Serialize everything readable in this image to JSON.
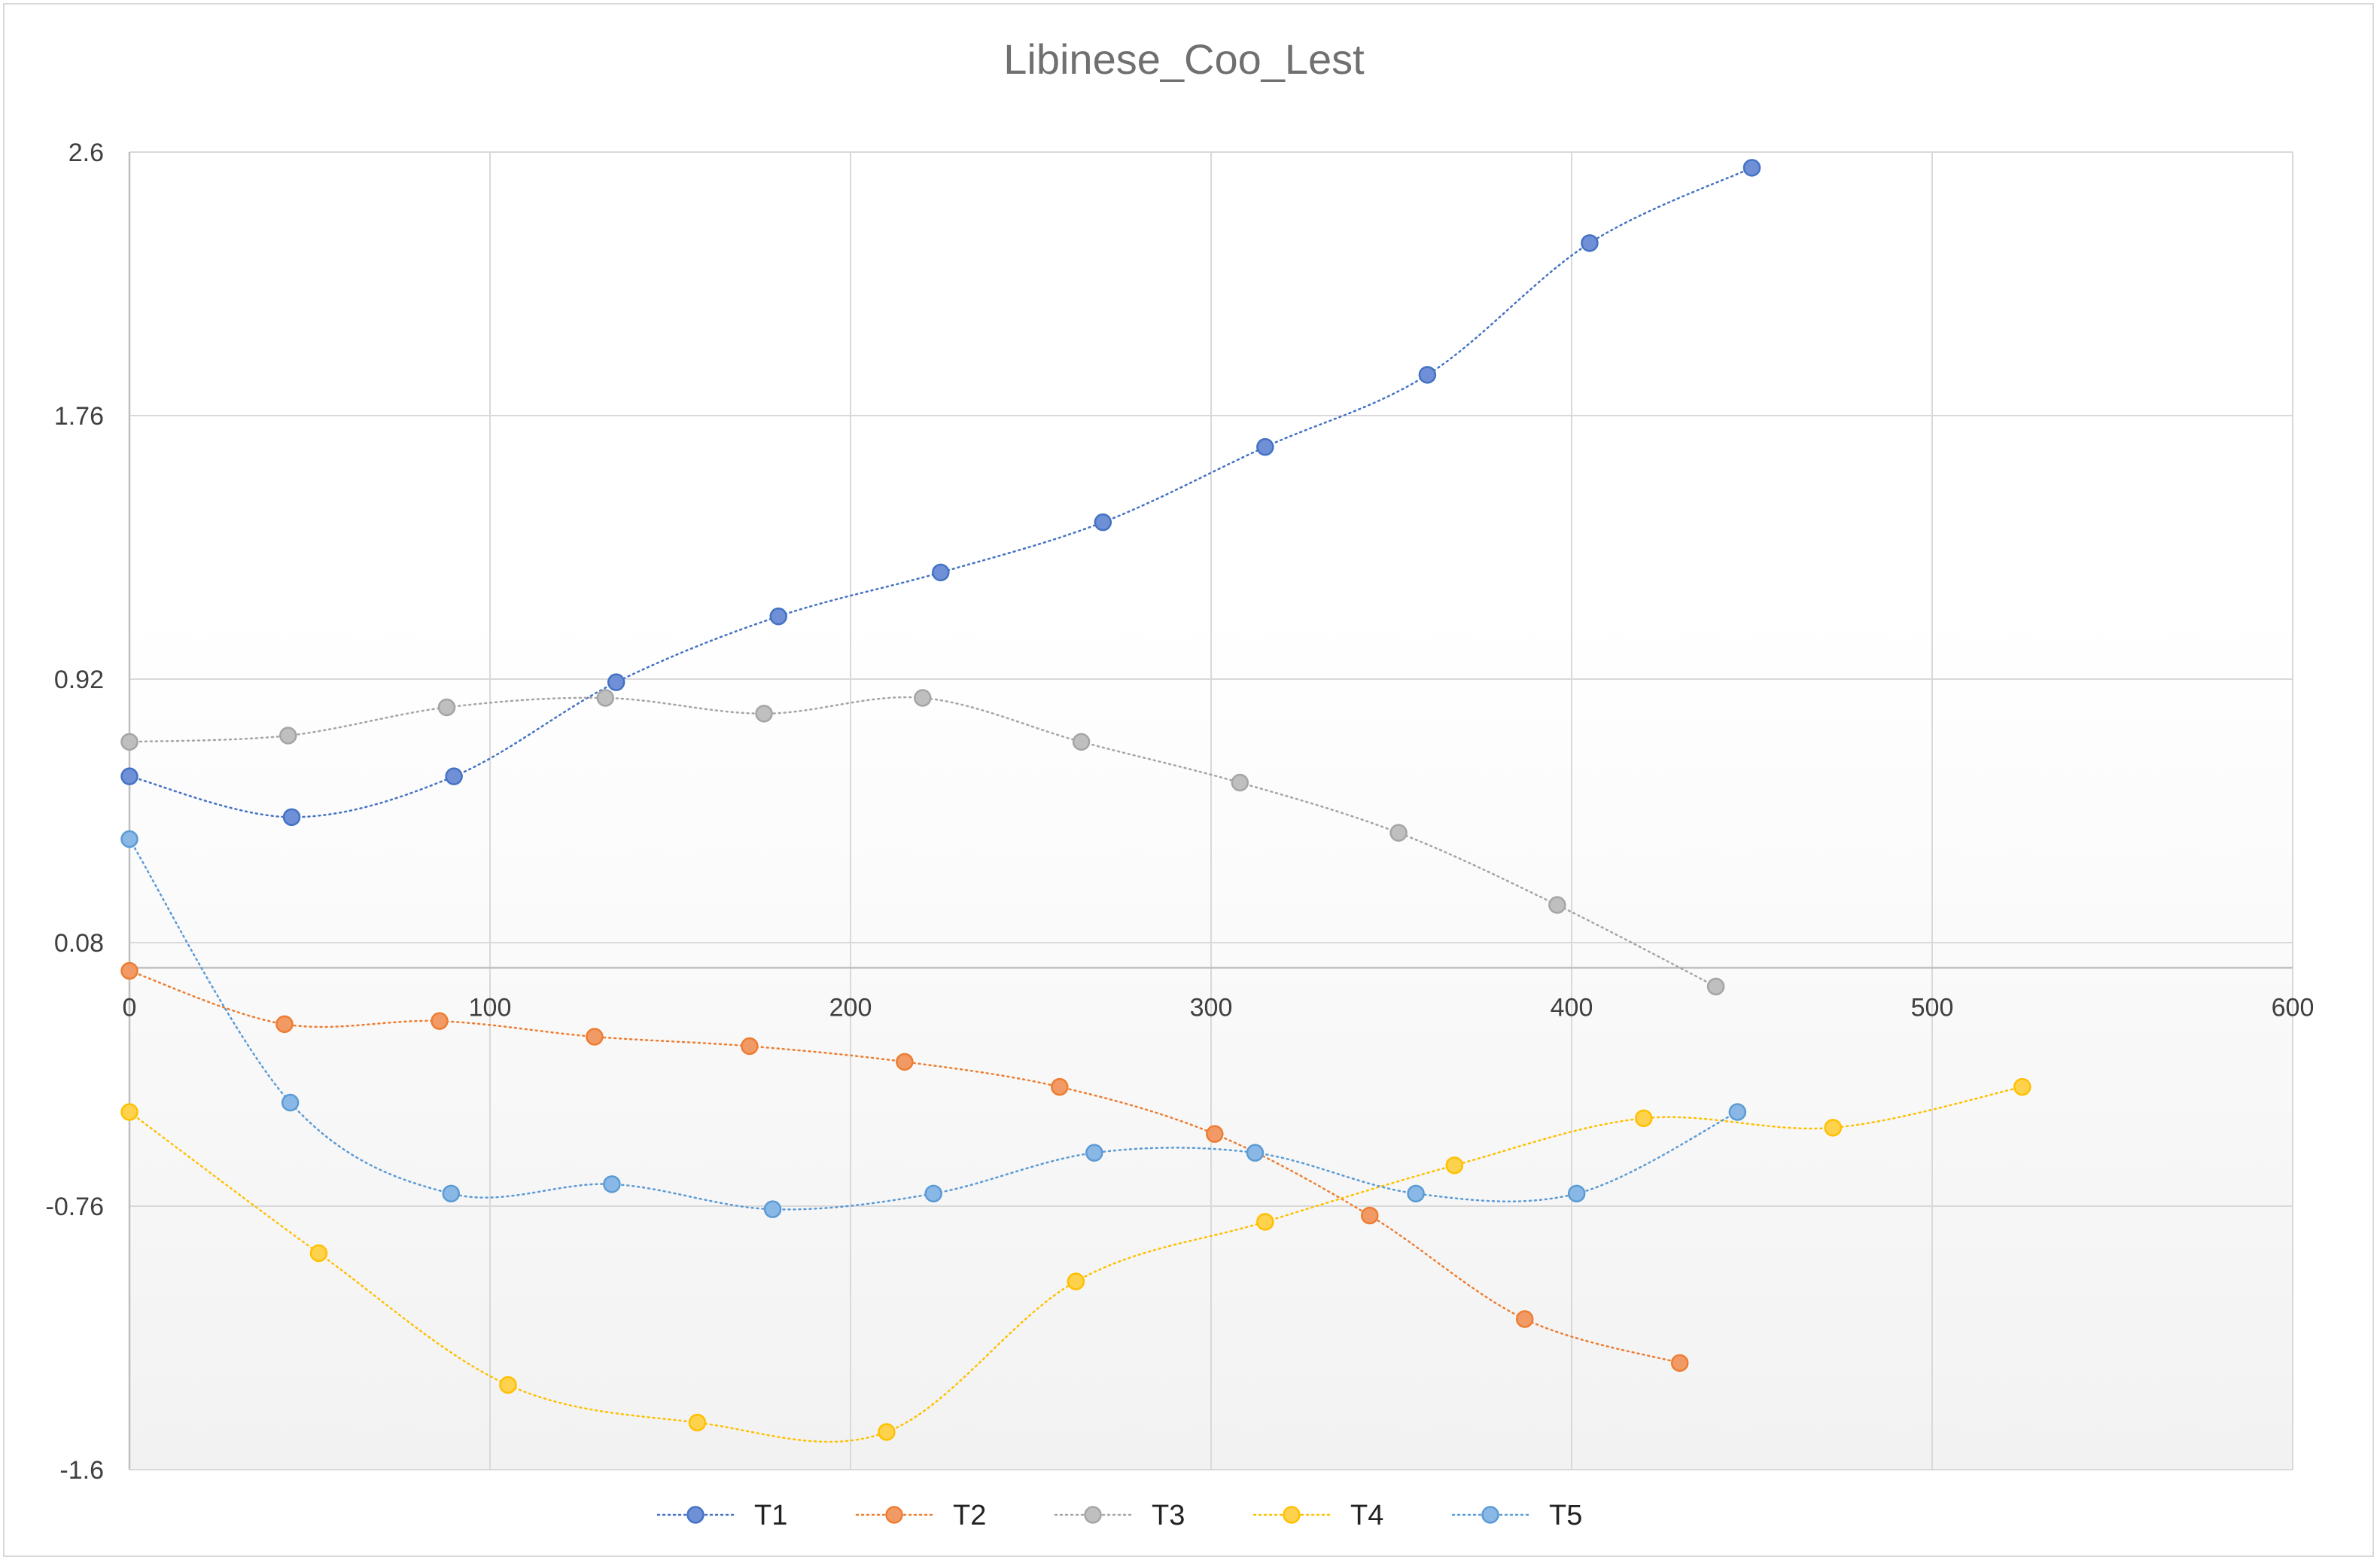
{
  "chart_data": {
    "type": "scatter",
    "title": "Libinese_Coo_Lest",
    "xlim": [
      0,
      600
    ],
    "ylim": [
      -1.6,
      2.6
    ],
    "x_ticks": [
      "0",
      "100",
      "200",
      "300",
      "400",
      "500",
      "600"
    ],
    "y_ticks": [
      "2.6",
      "1.76",
      "0.92",
      "0.08",
      "-0.76",
      "-1.6"
    ],
    "grid": true,
    "smooth_lines": true,
    "line_style": "dotted",
    "legend_position": "bottom",
    "series": [
      {
        "name": "T1",
        "color": "#4472C4",
        "fill": "#6F8FD6",
        "x": [
          0,
          45,
          90,
          135,
          180,
          225,
          270,
          315,
          360,
          405,
          450
        ],
        "y": [
          0.61,
          0.48,
          0.61,
          0.91,
          1.12,
          1.26,
          1.42,
          1.66,
          1.89,
          2.31,
          2.55
        ]
      },
      {
        "name": "T2",
        "color": "#ED7D31",
        "fill": "#F29A66",
        "x": [
          0,
          43,
          86,
          129,
          172,
          215,
          258,
          301,
          344,
          387,
          430
        ],
        "y": [
          -0.01,
          -0.18,
          -0.17,
          -0.22,
          -0.25,
          -0.3,
          -0.38,
          -0.53,
          -0.79,
          -1.12,
          -1.26
        ]
      },
      {
        "name": "T3",
        "color": "#A5A5A5",
        "fill": "#BFBFBF",
        "x": [
          0,
          44,
          88,
          132,
          176,
          220,
          264,
          308,
          352,
          396,
          440
        ],
        "y": [
          0.72,
          0.74,
          0.83,
          0.86,
          0.81,
          0.86,
          0.72,
          0.59,
          0.43,
          0.2,
          -0.06
        ]
      },
      {
        "name": "T4",
        "color": "#FFC000",
        "fill": "#FFD24D",
        "x": [
          0,
          52.5,
          105,
          157.5,
          210,
          262.5,
          315,
          367.5,
          420,
          472.5,
          525
        ],
        "y": [
          -0.46,
          -0.91,
          -1.33,
          -1.45,
          -1.48,
          -1.0,
          -0.81,
          -0.63,
          -0.48,
          -0.51,
          -0.38
        ]
      },
      {
        "name": "T5",
        "color": "#5B9BD5",
        "fill": "#8AB8E6",
        "x": [
          0,
          44.6,
          89.2,
          133.8,
          178.4,
          223,
          267.6,
          312.2,
          356.8,
          401.4,
          446
        ],
        "y": [
          0.41,
          -0.43,
          -0.72,
          -0.69,
          -0.77,
          -0.72,
          -0.59,
          -0.59,
          -0.72,
          -0.72,
          -0.46
        ]
      }
    ]
  }
}
